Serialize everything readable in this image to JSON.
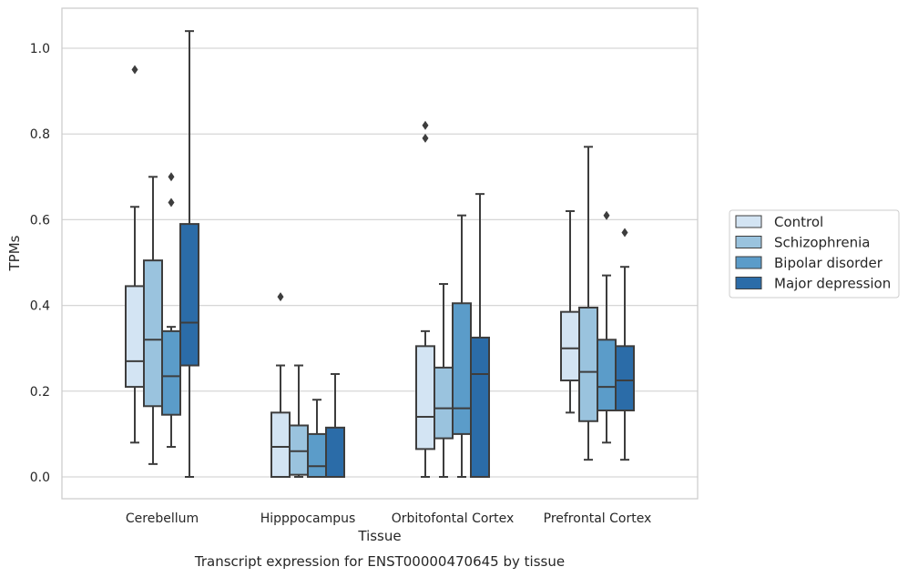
{
  "chart_data": {
    "type": "box",
    "title": "Transcript expression for ENST00000470645 by tissue",
    "xlabel": "Tissue",
    "ylabel": "TPMs",
    "ylim": [
      -0.05,
      1.09
    ],
    "yticks": [
      0.0,
      0.2,
      0.4,
      0.6,
      0.8,
      1.0
    ],
    "ytick_labels": [
      "0.0",
      "0.2",
      "0.4",
      "0.6",
      "0.8",
      "1.0"
    ],
    "grid": "horizontal",
    "legend_position": "right",
    "categories": [
      "Cerebellum",
      "Hipppocampus",
      "Orbitofontal Cortex",
      "Prefrontal Cortex"
    ],
    "series": [
      {
        "name": "Control",
        "color": "#d3e4f3",
        "boxes": [
          {
            "whislo": 0.08,
            "q1": 0.21,
            "med": 0.27,
            "q3": 0.445,
            "whishi": 0.63,
            "fliers": [
              0.95
            ]
          },
          {
            "whislo": 0.0,
            "q1": 0.0,
            "med": 0.07,
            "q3": 0.15,
            "whishi": 0.26,
            "fliers": [
              0.42
            ]
          },
          {
            "whislo": 0.0,
            "q1": 0.065,
            "med": 0.14,
            "q3": 0.305,
            "whishi": 0.34,
            "fliers": [
              0.79,
              0.82
            ]
          },
          {
            "whislo": 0.15,
            "q1": 0.225,
            "med": 0.3,
            "q3": 0.385,
            "whishi": 0.62,
            "fliers": []
          }
        ]
      },
      {
        "name": "Schizophrenia",
        "color": "#9ac3de",
        "boxes": [
          {
            "whislo": 0.03,
            "q1": 0.165,
            "med": 0.32,
            "q3": 0.505,
            "whishi": 0.7,
            "fliers": []
          },
          {
            "whislo": 0.0,
            "q1": 0.005,
            "med": 0.06,
            "q3": 0.12,
            "whishi": 0.26,
            "fliers": []
          },
          {
            "whislo": 0.0,
            "q1": 0.09,
            "med": 0.16,
            "q3": 0.255,
            "whishi": 0.45,
            "fliers": []
          },
          {
            "whislo": 0.04,
            "q1": 0.13,
            "med": 0.245,
            "q3": 0.395,
            "whishi": 0.77,
            "fliers": []
          }
        ]
      },
      {
        "name": "Bipolar disorder",
        "color": "#5b9cc9",
        "boxes": [
          {
            "whislo": 0.07,
            "q1": 0.145,
            "med": 0.235,
            "q3": 0.34,
            "whishi": 0.35,
            "fliers": [
              0.64,
              0.7
            ]
          },
          {
            "whislo": 0.0,
            "q1": 0.0,
            "med": 0.025,
            "q3": 0.1,
            "whishi": 0.18,
            "fliers": []
          },
          {
            "whislo": 0.0,
            "q1": 0.1,
            "med": 0.16,
            "q3": 0.405,
            "whishi": 0.61,
            "fliers": []
          },
          {
            "whislo": 0.08,
            "q1": 0.155,
            "med": 0.21,
            "q3": 0.32,
            "whishi": 0.47,
            "fliers": [
              0.61
            ]
          }
        ]
      },
      {
        "name": "Major depression",
        "color": "#2b6ca8",
        "boxes": [
          {
            "whislo": 0.0,
            "q1": 0.26,
            "med": 0.36,
            "q3": 0.59,
            "whishi": 1.04,
            "fliers": []
          },
          {
            "whislo": 0.0,
            "q1": 0.0,
            "med": 0.0,
            "q3": 0.115,
            "whishi": 0.24,
            "fliers": []
          },
          {
            "whislo": 0.0,
            "q1": 0.0,
            "med": 0.24,
            "q3": 0.325,
            "whishi": 0.66,
            "fliers": []
          },
          {
            "whislo": 0.04,
            "q1": 0.155,
            "med": 0.225,
            "q3": 0.305,
            "whishi": 0.49,
            "fliers": [
              0.57
            ]
          }
        ]
      }
    ]
  }
}
